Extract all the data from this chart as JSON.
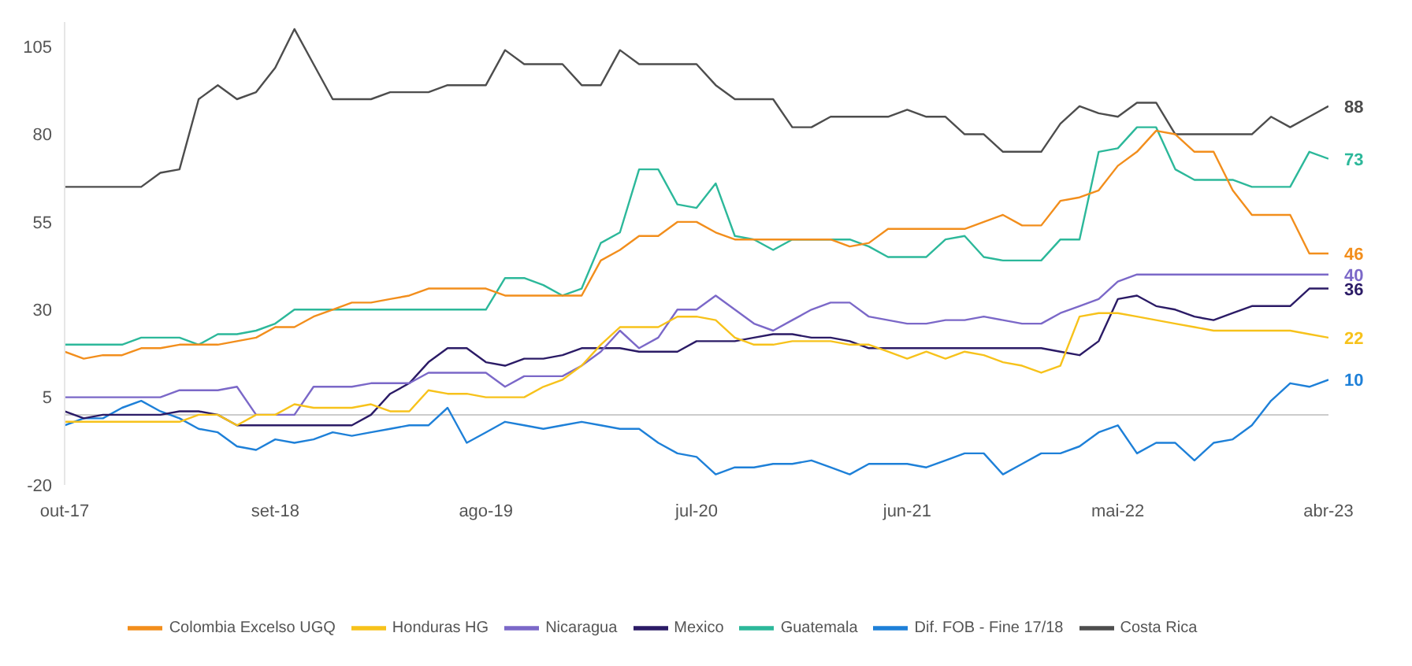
{
  "chart_data": {
    "type": "line",
    "x": [
      "2017-10",
      "2017-11",
      "2017-12",
      "2018-01",
      "2018-02",
      "2018-03",
      "2018-04",
      "2018-05",
      "2018-06",
      "2018-07",
      "2018-08",
      "2018-09",
      "2018-10",
      "2018-11",
      "2018-12",
      "2019-01",
      "2019-02",
      "2019-03",
      "2019-04",
      "2019-05",
      "2019-06",
      "2019-07",
      "2019-08",
      "2019-09",
      "2019-10",
      "2019-11",
      "2019-12",
      "2020-01",
      "2020-02",
      "2020-03",
      "2020-04",
      "2020-05",
      "2020-06",
      "2020-07",
      "2020-08",
      "2020-09",
      "2020-10",
      "2020-11",
      "2020-12",
      "2021-01",
      "2021-02",
      "2021-03",
      "2021-04",
      "2021-05",
      "2021-06",
      "2021-07",
      "2021-08",
      "2021-09",
      "2021-10",
      "2021-11",
      "2021-12",
      "2022-01",
      "2022-02",
      "2022-03",
      "2022-04",
      "2022-05",
      "2022-06",
      "2022-07",
      "2022-08",
      "2022-09",
      "2022-10",
      "2022-11",
      "2022-12",
      "2023-01",
      "2023-02",
      "2023-03",
      "2023-04"
    ],
    "series": [
      {
        "name": "Colombia Excelso UGQ",
        "color": "#f28e1c",
        "values": [
          18,
          16,
          17,
          17,
          19,
          19,
          20,
          20,
          20,
          21,
          22,
          25,
          25,
          28,
          30,
          32,
          32,
          33,
          34,
          36,
          36,
          36,
          36,
          34,
          34,
          34,
          34,
          34,
          44,
          47,
          51,
          51,
          55,
          55,
          52,
          50,
          50,
          50,
          50,
          50,
          50,
          48,
          49,
          53,
          53,
          53,
          53,
          53,
          55,
          57,
          54,
          54,
          61,
          62,
          64,
          71,
          75,
          81,
          80,
          75,
          75,
          64,
          57,
          57,
          57,
          46,
          46
        ],
        "value_labels": [
          null,
          null,
          null,
          null,
          null,
          null,
          null,
          null,
          null,
          null,
          null,
          null,
          null,
          null,
          null,
          null,
          null,
          null,
          null,
          null,
          null,
          null,
          null,
          null,
          null,
          null,
          null,
          null,
          null,
          null,
          null,
          null,
          null,
          null,
          null,
          null,
          null,
          null,
          null,
          null,
          null,
          null,
          null,
          null,
          null,
          null,
          null,
          null,
          null,
          null,
          null,
          null,
          null,
          null,
          null,
          null,
          null,
          null,
          null,
          null,
          null,
          null,
          null,
          null,
          null,
          null,
          "46"
        ]
      },
      {
        "name": "Honduras HG",
        "color": "#f7c21b",
        "values": [
          -2,
          -2,
          -2,
          -2,
          -2,
          -2,
          -2,
          0,
          0,
          -3,
          0,
          0,
          3,
          2,
          2,
          2,
          3,
          1,
          1,
          7,
          6,
          6,
          5,
          5,
          5,
          8,
          10,
          14,
          20,
          25,
          25,
          25,
          28,
          28,
          27,
          22,
          20,
          20,
          21,
          21,
          21,
          20,
          20,
          18,
          16,
          18,
          16,
          18,
          17,
          15,
          14,
          12,
          14,
          28,
          29,
          29,
          28,
          27,
          26,
          25,
          24,
          24,
          24,
          24,
          24,
          23,
          22
        ],
        "value_labels": [
          null,
          null,
          null,
          null,
          null,
          null,
          null,
          null,
          null,
          null,
          null,
          null,
          null,
          null,
          null,
          null,
          null,
          null,
          null,
          null,
          null,
          null,
          null,
          null,
          null,
          null,
          null,
          null,
          null,
          null,
          null,
          null,
          null,
          null,
          null,
          null,
          null,
          null,
          null,
          null,
          null,
          null,
          null,
          null,
          null,
          null,
          null,
          null,
          null,
          null,
          null,
          null,
          null,
          null,
          null,
          null,
          null,
          null,
          null,
          null,
          null,
          null,
          null,
          null,
          null,
          null,
          "22"
        ]
      },
      {
        "name": "Nicaragua",
        "color": "#7b68c8",
        "values": [
          5,
          5,
          5,
          5,
          5,
          5,
          7,
          7,
          7,
          8,
          0,
          0,
          0,
          8,
          8,
          8,
          9,
          9,
          9,
          12,
          12,
          12,
          12,
          8,
          11,
          11,
          11,
          14,
          18,
          24,
          19,
          22,
          30,
          30,
          34,
          30,
          26,
          24,
          27,
          30,
          32,
          32,
          28,
          27,
          26,
          26,
          27,
          27,
          28,
          27,
          26,
          26,
          29,
          31,
          33,
          38,
          40,
          40,
          40,
          40,
          40,
          40,
          40,
          40,
          40,
          40,
          40
        ],
        "value_labels": [
          null,
          null,
          null,
          null,
          null,
          null,
          null,
          null,
          null,
          null,
          null,
          null,
          null,
          null,
          null,
          null,
          null,
          null,
          null,
          null,
          null,
          null,
          null,
          null,
          null,
          null,
          null,
          null,
          null,
          null,
          null,
          null,
          null,
          null,
          null,
          null,
          null,
          null,
          null,
          null,
          null,
          null,
          null,
          null,
          null,
          null,
          null,
          null,
          null,
          null,
          null,
          null,
          null,
          null,
          null,
          null,
          null,
          null,
          null,
          null,
          null,
          null,
          null,
          null,
          null,
          null,
          "40"
        ]
      },
      {
        "name": "Mexico",
        "color": "#2b1b66",
        "values": [
          1,
          -1,
          0,
          0,
          0,
          0,
          1,
          1,
          0,
          -3,
          -3,
          -3,
          -3,
          -3,
          -3,
          -3,
          0,
          6,
          9,
          15,
          19,
          19,
          15,
          14,
          16,
          16,
          17,
          19,
          19,
          19,
          18,
          18,
          18,
          21,
          21,
          21,
          22,
          23,
          23,
          22,
          22,
          21,
          19,
          19,
          19,
          19,
          19,
          19,
          19,
          19,
          19,
          19,
          18,
          17,
          21,
          33,
          34,
          31,
          30,
          28,
          27,
          29,
          31,
          31,
          31,
          36,
          36
        ],
        "value_labels": [
          null,
          null,
          null,
          null,
          null,
          null,
          null,
          null,
          null,
          null,
          null,
          null,
          null,
          null,
          null,
          null,
          null,
          null,
          null,
          null,
          null,
          null,
          null,
          null,
          null,
          null,
          null,
          null,
          null,
          null,
          null,
          null,
          null,
          null,
          null,
          null,
          null,
          null,
          null,
          null,
          null,
          null,
          null,
          null,
          null,
          null,
          null,
          null,
          null,
          null,
          null,
          null,
          null,
          null,
          null,
          null,
          null,
          null,
          null,
          null,
          null,
          null,
          null,
          null,
          null,
          null,
          "36"
        ]
      },
      {
        "name": "Guatemala",
        "color": "#2cb89a",
        "values": [
          20,
          20,
          20,
          20,
          22,
          22,
          22,
          20,
          23,
          23,
          24,
          26,
          30,
          30,
          30,
          30,
          30,
          30,
          30,
          30,
          30,
          30,
          30,
          39,
          39,
          37,
          34,
          36,
          49,
          52,
          70,
          70,
          60,
          59,
          66,
          51,
          50,
          47,
          50,
          50,
          50,
          50,
          48,
          45,
          45,
          45,
          50,
          51,
          45,
          44,
          44,
          44,
          50,
          50,
          75,
          76,
          82,
          82,
          70,
          67,
          67,
          67,
          65,
          65,
          65,
          75,
          73
        ],
        "value_labels": [
          null,
          null,
          null,
          null,
          null,
          null,
          null,
          null,
          null,
          null,
          null,
          null,
          null,
          null,
          null,
          null,
          null,
          null,
          null,
          null,
          null,
          null,
          null,
          null,
          null,
          null,
          null,
          null,
          null,
          null,
          null,
          null,
          null,
          null,
          null,
          null,
          null,
          null,
          null,
          null,
          null,
          null,
          null,
          null,
          null,
          null,
          null,
          null,
          null,
          null,
          null,
          null,
          null,
          null,
          null,
          null,
          null,
          null,
          null,
          null,
          null,
          null,
          null,
          null,
          null,
          null,
          "73"
        ]
      },
      {
        "name": "Dif. FOB - Fine 17/18",
        "color": "#1e80d8",
        "values": [
          -3,
          -1,
          -1,
          2,
          4,
          1,
          -1,
          -4,
          -5,
          -9,
          -10,
          -7,
          -8,
          -7,
          -5,
          -6,
          -5,
          -4,
          -3,
          -3,
          2,
          -8,
          -5,
          -2,
          -3,
          -4,
          -3,
          -2,
          -3,
          -4,
          -4,
          -8,
          -11,
          -12,
          -17,
          -15,
          -15,
          -14,
          -14,
          -13,
          -15,
          -17,
          -14,
          -14,
          -14,
          -15,
          -13,
          -11,
          -11,
          -17,
          -14,
          -11,
          -11,
          -9,
          -5,
          -3,
          -11,
          -8,
          -8,
          -13,
          -8,
          -7,
          -3,
          4,
          9,
          8,
          10
        ],
        "value_labels": [
          null,
          null,
          null,
          null,
          null,
          null,
          null,
          null,
          null,
          null,
          null,
          null,
          null,
          null,
          null,
          null,
          null,
          null,
          null,
          null,
          null,
          null,
          null,
          null,
          null,
          null,
          null,
          null,
          null,
          null,
          null,
          null,
          null,
          null,
          null,
          null,
          null,
          null,
          null,
          null,
          null,
          null,
          null,
          null,
          null,
          null,
          null,
          null,
          null,
          null,
          null,
          null,
          null,
          null,
          null,
          null,
          null,
          null,
          null,
          null,
          null,
          null,
          null,
          null,
          null,
          null,
          "10"
        ]
      },
      {
        "name": "Costa Rica",
        "color": "#4d4d4d",
        "values": [
          65,
          65,
          65,
          65,
          65,
          69,
          70,
          90,
          94,
          90,
          92,
          99,
          110,
          100,
          90,
          90,
          90,
          92,
          92,
          92,
          94,
          94,
          94,
          104,
          100,
          100,
          100,
          94,
          94,
          104,
          100,
          100,
          100,
          100,
          94,
          90,
          90,
          90,
          82,
          82,
          85,
          85,
          85,
          85,
          87,
          85,
          85,
          80,
          80,
          75,
          75,
          75,
          83,
          88,
          86,
          85,
          89,
          89,
          80,
          80,
          80,
          80,
          80,
          85,
          82,
          85,
          88
        ],
        "value_labels": [
          null,
          null,
          null,
          null,
          null,
          null,
          null,
          null,
          null,
          null,
          null,
          null,
          null,
          null,
          null,
          null,
          null,
          null,
          null,
          null,
          null,
          null,
          null,
          null,
          null,
          null,
          null,
          null,
          null,
          null,
          null,
          null,
          null,
          null,
          null,
          null,
          null,
          null,
          null,
          null,
          null,
          null,
          null,
          null,
          null,
          null,
          null,
          null,
          null,
          null,
          null,
          null,
          null,
          null,
          null,
          null,
          null,
          null,
          null,
          null,
          null,
          null,
          null,
          null,
          null,
          null,
          "88"
        ]
      }
    ],
    "xlim": [
      "2017-10",
      "2023-04"
    ],
    "xticks": [
      {
        "value": "2017-10",
        "label": "out-17"
      },
      {
        "value": "2018-09",
        "label": "set-18"
      },
      {
        "value": "2019-08",
        "label": "ago-19"
      },
      {
        "value": "2020-07",
        "label": "jul-20"
      },
      {
        "value": "2021-06",
        "label": "jun-21"
      },
      {
        "value": "2022-05",
        "label": "mai-22"
      },
      {
        "value": "2023-04",
        "label": "abr-23"
      }
    ],
    "ylim": [
      -20,
      112
    ],
    "yticks": [
      105,
      80,
      55,
      30,
      5,
      -20
    ],
    "ref_lines": [
      {
        "axis": "y",
        "value": 0,
        "color": "#cccccc"
      }
    ],
    "legend": "bottom"
  }
}
